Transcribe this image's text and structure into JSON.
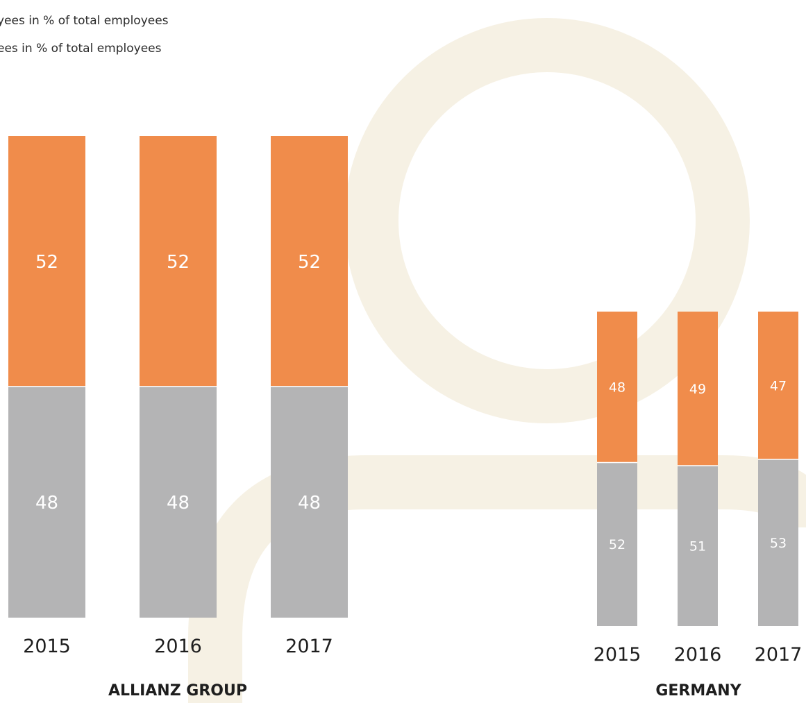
{
  "legend": [
    {
      "label": "yees in % of total employees",
      "color": "#F08C4B"
    },
    {
      "label": "ees in % of total employees",
      "color": "#B4B4B5"
    }
  ],
  "colors": {
    "orange": "#F08C4B",
    "gray": "#B4B4B5",
    "background_shape": "#F6F1E4"
  },
  "chart_data": [
    {
      "type": "bar",
      "stacked": true,
      "title": "ALLIANZ GROUP",
      "categories": [
        "2015",
        "2016",
        "2017"
      ],
      "series": [
        {
          "values": [
            48,
            48,
            48
          ],
          "color": "#B4B4B5"
        },
        {
          "values": [
            52,
            52,
            52
          ],
          "color": "#F08C4B"
        }
      ],
      "ylim": [
        0,
        100
      ]
    },
    {
      "type": "bar",
      "stacked": true,
      "title": "GERMANY",
      "categories": [
        "2015",
        "2016",
        "2017"
      ],
      "series": [
        {
          "values": [
            52,
            51,
            53
          ],
          "color": "#B4B4B5"
        },
        {
          "values": [
            48,
            49,
            47
          ],
          "color": "#F08C4B"
        }
      ],
      "ylim": [
        0,
        100
      ]
    }
  ]
}
